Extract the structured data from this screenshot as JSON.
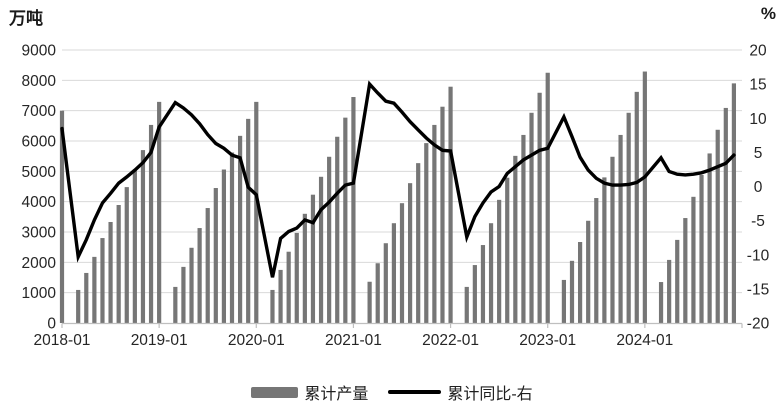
{
  "chart_data": {
    "type": "bar+line",
    "left_unit": "万吨",
    "right_unit": "%",
    "x_tick_labels": [
      "2018-01",
      "2019-01",
      "2020-01",
      "2021-01",
      "2022-01",
      "2023-01",
      "2024-01"
    ],
    "left_axis": {
      "min": 0,
      "max": 9000,
      "step": 1000,
      "tick_labels": [
        "9000",
        "8000",
        "7000",
        "6000",
        "5000",
        "4000",
        "3000",
        "2000",
        "1000",
        "0"
      ]
    },
    "right_axis": {
      "min": -20,
      "max": 20,
      "step": 5,
      "tick_labels": [
        "20",
        "15",
        "10",
        "5",
        "0",
        "-5",
        "-10",
        "-15",
        "-20"
      ]
    },
    "grid": "horizontal",
    "legend": [
      {
        "label": "累计产量",
        "swatch": "bar",
        "color": "#767676"
      },
      {
        "label": "累计同比-右",
        "swatch": "line",
        "color": "#000000"
      }
    ],
    "series": [
      {
        "name": "累计产量",
        "type": "bar",
        "axis": "left",
        "color": "#767676",
        "points": [
          [
            "2017-12",
            7000
          ],
          [
            "2018-02",
            1090
          ],
          [
            "2018-03",
            1650
          ],
          [
            "2018-04",
            2180
          ],
          [
            "2018-05",
            2800
          ],
          [
            "2018-06",
            3330
          ],
          [
            "2018-07",
            3890
          ],
          [
            "2018-08",
            4480
          ],
          [
            "2018-09",
            5050
          ],
          [
            "2018-10",
            5700
          ],
          [
            "2018-11",
            6530
          ],
          [
            "2018-12",
            7290
          ],
          [
            "2019-02",
            1190
          ],
          [
            "2019-03",
            1850
          ],
          [
            "2019-04",
            2480
          ],
          [
            "2019-05",
            3130
          ],
          [
            "2019-06",
            3790
          ],
          [
            "2019-07",
            4450
          ],
          [
            "2019-08",
            5060
          ],
          [
            "2019-09",
            5620
          ],
          [
            "2019-10",
            6170
          ],
          [
            "2019-11",
            6730
          ],
          [
            "2019-12",
            7290
          ],
          [
            "2020-02",
            1090
          ],
          [
            "2020-03",
            1750
          ],
          [
            "2020-04",
            2350
          ],
          [
            "2020-05",
            2970
          ],
          [
            "2020-06",
            3600
          ],
          [
            "2020-07",
            4230
          ],
          [
            "2020-08",
            4820
          ],
          [
            "2020-09",
            5480
          ],
          [
            "2020-10",
            6140
          ],
          [
            "2020-11",
            6770
          ],
          [
            "2020-12",
            7450
          ],
          [
            "2021-02",
            1360
          ],
          [
            "2021-03",
            1970
          ],
          [
            "2021-04",
            2630
          ],
          [
            "2021-05",
            3290
          ],
          [
            "2021-06",
            3950
          ],
          [
            "2021-07",
            4610
          ],
          [
            "2021-08",
            5270
          ],
          [
            "2021-09",
            5930
          ],
          [
            "2021-10",
            6530
          ],
          [
            "2021-11",
            7130
          ],
          [
            "2021-12",
            7790
          ],
          [
            "2022-02",
            1190
          ],
          [
            "2022-03",
            1910
          ],
          [
            "2022-04",
            2570
          ],
          [
            "2022-05",
            3290
          ],
          [
            "2022-06",
            4060
          ],
          [
            "2022-07",
            4790
          ],
          [
            "2022-08",
            5510
          ],
          [
            "2022-09",
            6200
          ],
          [
            "2022-10",
            6930
          ],
          [
            "2022-11",
            7590
          ],
          [
            "2022-12",
            8250
          ],
          [
            "2023-02",
            1420
          ],
          [
            "2023-03",
            2050
          ],
          [
            "2023-04",
            2670
          ],
          [
            "2023-05",
            3370
          ],
          [
            "2023-06",
            4120
          ],
          [
            "2023-07",
            4800
          ],
          [
            "2023-08",
            5480
          ],
          [
            "2023-09",
            6200
          ],
          [
            "2023-10",
            6930
          ],
          [
            "2023-11",
            7620
          ],
          [
            "2023-12",
            8290
          ],
          [
            "2024-02",
            1350
          ],
          [
            "2024-03",
            2080
          ],
          [
            "2024-04",
            2740
          ],
          [
            "2024-05",
            3460
          ],
          [
            "2024-06",
            4160
          ],
          [
            "2024-07",
            4880
          ],
          [
            "2024-08",
            5590
          ],
          [
            "2024-09",
            6370
          ],
          [
            "2024-10",
            7090
          ],
          [
            "2024-11",
            7900
          ]
        ]
      },
      {
        "name": "累计同比-右",
        "type": "line",
        "axis": "right",
        "color": "#000000",
        "points": [
          [
            "2017-12",
            8.5
          ],
          [
            "2018-02",
            -10.3
          ],
          [
            "2018-03",
            -7.8
          ],
          [
            "2018-04",
            -4.9
          ],
          [
            "2018-05",
            -2.4
          ],
          [
            "2018-06",
            -1.0
          ],
          [
            "2018-07",
            0.5
          ],
          [
            "2018-08",
            1.4
          ],
          [
            "2018-09",
            2.4
          ],
          [
            "2018-10",
            3.5
          ],
          [
            "2018-11",
            5.0
          ],
          [
            "2018-12",
            8.7
          ],
          [
            "2019-02",
            12.3
          ],
          [
            "2019-03",
            11.5
          ],
          [
            "2019-04",
            10.5
          ],
          [
            "2019-05",
            9.2
          ],
          [
            "2019-06",
            7.6
          ],
          [
            "2019-07",
            6.3
          ],
          [
            "2019-08",
            5.6
          ],
          [
            "2019-09",
            4.6
          ],
          [
            "2019-10",
            4.2
          ],
          [
            "2019-11",
            -0.1
          ],
          [
            "2019-12",
            -1.2
          ],
          [
            "2020-02",
            -13.3
          ],
          [
            "2020-03",
            -7.6
          ],
          [
            "2020-04",
            -6.6
          ],
          [
            "2020-05",
            -6.1
          ],
          [
            "2020-06",
            -4.9
          ],
          [
            "2020-07",
            -5.3
          ],
          [
            "2020-08",
            -3.4
          ],
          [
            "2020-09",
            -2.3
          ],
          [
            "2020-10",
            -1.0
          ],
          [
            "2020-11",
            0.2
          ],
          [
            "2020-12",
            0.5
          ],
          [
            "2021-02",
            15.0
          ],
          [
            "2021-03",
            13.7
          ],
          [
            "2021-04",
            12.5
          ],
          [
            "2021-05",
            12.2
          ],
          [
            "2021-06",
            10.9
          ],
          [
            "2021-07",
            9.5
          ],
          [
            "2021-08",
            8.3
          ],
          [
            "2021-09",
            7.1
          ],
          [
            "2021-10",
            6.1
          ],
          [
            "2021-11",
            5.3
          ],
          [
            "2021-12",
            5.2
          ],
          [
            "2022-02",
            -7.4
          ],
          [
            "2022-03",
            -4.4
          ],
          [
            "2022-04",
            -2.4
          ],
          [
            "2022-05",
            -0.8
          ],
          [
            "2022-06",
            0.0
          ],
          [
            "2022-07",
            1.9
          ],
          [
            "2022-08",
            2.9
          ],
          [
            "2022-09",
            3.9
          ],
          [
            "2022-10",
            4.6
          ],
          [
            "2022-11",
            5.3
          ],
          [
            "2022-12",
            5.6
          ],
          [
            "2023-02",
            10.2
          ],
          [
            "2023-03",
            7.3
          ],
          [
            "2023-04",
            4.3
          ],
          [
            "2023-05",
            2.4
          ],
          [
            "2023-06",
            1.2
          ],
          [
            "2023-07",
            0.5
          ],
          [
            "2023-08",
            0.2
          ],
          [
            "2023-09",
            0.2
          ],
          [
            "2023-10",
            0.3
          ],
          [
            "2023-11",
            0.6
          ],
          [
            "2023-12",
            1.4
          ],
          [
            "2024-02",
            4.2
          ],
          [
            "2024-03",
            2.2
          ],
          [
            "2024-04",
            1.8
          ],
          [
            "2024-05",
            1.7
          ],
          [
            "2024-06",
            1.8
          ],
          [
            "2024-07",
            2.0
          ],
          [
            "2024-08",
            2.4
          ],
          [
            "2024-09",
            2.9
          ],
          [
            "2024-10",
            3.4
          ],
          [
            "2024-11",
            4.6
          ]
        ]
      }
    ],
    "colors": {
      "bar": "#767676",
      "line": "#000000",
      "grid": "#d9d9d9",
      "axis": "#bfbfbf",
      "text": "#262626"
    }
  }
}
